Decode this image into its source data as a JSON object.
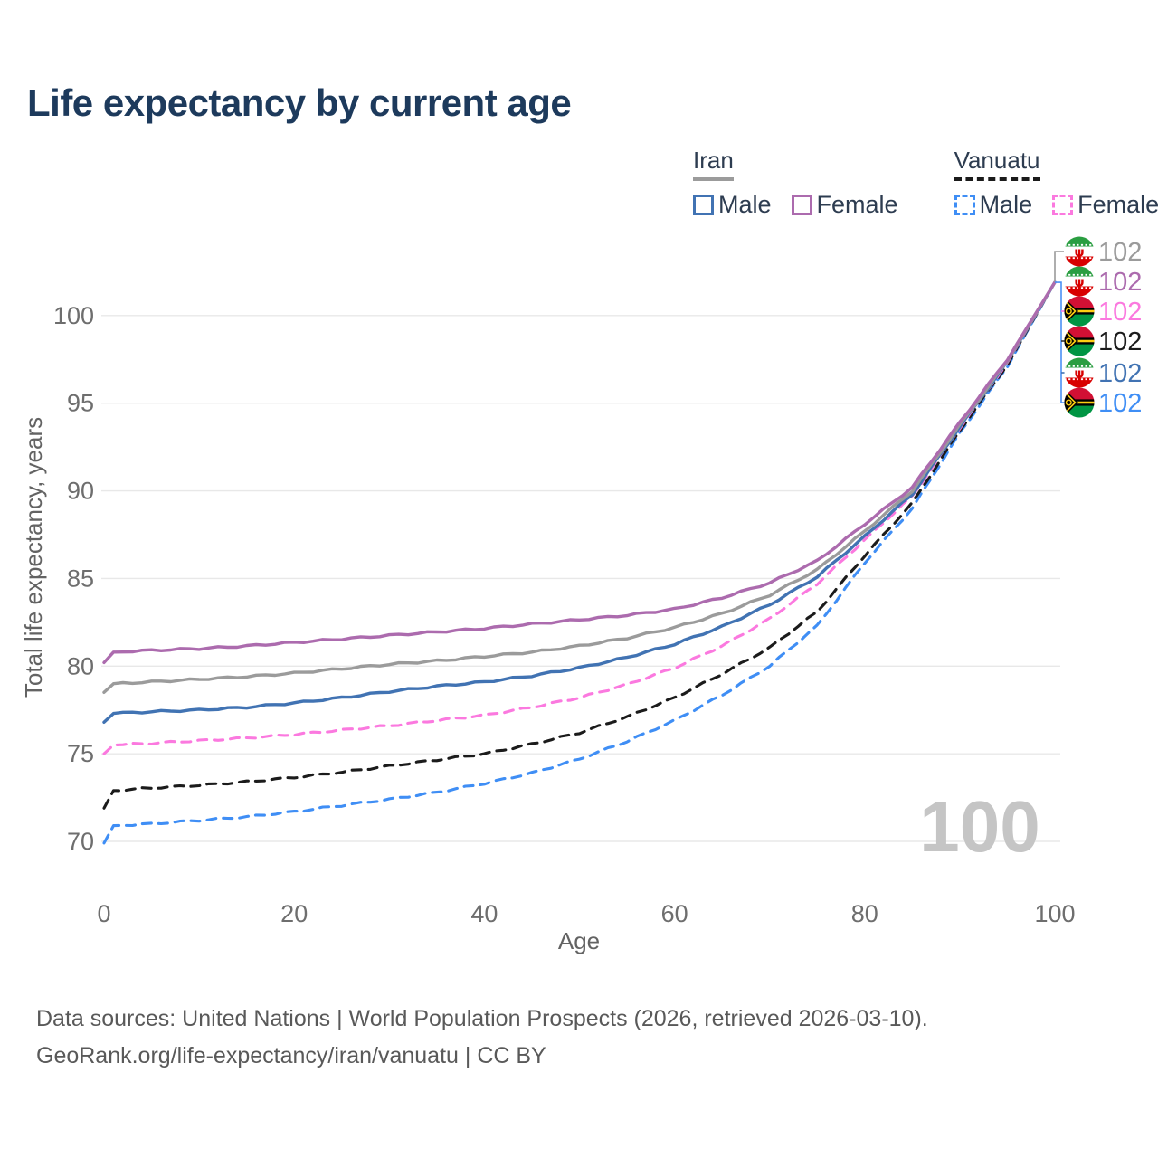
{
  "title": "Life expectancy by current age",
  "legend": {
    "groups": [
      {
        "name": "Iran",
        "line_style": "solid",
        "line_color": "#9b9b9b",
        "items": [
          {
            "label": "Male",
            "color": "#4173b3",
            "style": "solid"
          },
          {
            "label": "Female",
            "color": "#ac6bae",
            "style": "solid"
          }
        ]
      },
      {
        "name": "Vanuatu",
        "line_style": "dashed",
        "line_color": "#1b1b1b",
        "items": [
          {
            "label": "Male",
            "color": "#3f8ef5",
            "style": "dashed"
          },
          {
            "label": "Female",
            "color": "#fb79df",
            "style": "dashed"
          }
        ]
      }
    ]
  },
  "watermark": "100",
  "footer": {
    "line1": "Data sources: United Nations | World Population Prospects (2026, retrieved 2026-03-10).",
    "line2": "GeoRank.org/life-expectancy/iran/vanuatu | CC BY"
  },
  "chart_data": {
    "type": "line",
    "title": "Life expectancy by current age",
    "xlabel": "Age",
    "ylabel": "Total life expectancy, years",
    "xlim": [
      0,
      100
    ],
    "ylim": [
      69,
      103
    ],
    "xticks": [
      0,
      20,
      40,
      60,
      80,
      100
    ],
    "yticks": [
      70,
      75,
      80,
      85,
      90,
      95,
      100
    ],
    "grid": true,
    "legend_position": "top-right",
    "x": [
      0,
      1,
      5,
      10,
      15,
      20,
      25,
      30,
      35,
      40,
      45,
      50,
      55,
      60,
      65,
      70,
      75,
      80,
      85,
      90,
      95,
      100
    ],
    "series": [
      {
        "name": "Vanuatu male",
        "country": "Vanuatu",
        "sex": "Male",
        "color": "#3f8ef5",
        "dash": "dashed",
        "values": [
          69.9,
          70.9,
          71.0,
          71.2,
          71.4,
          71.7,
          72.05,
          72.4,
          72.8,
          73.3,
          73.9,
          74.7,
          75.7,
          76.9,
          78.35,
          80.0,
          82.3,
          85.9,
          89.0,
          93.3,
          97.1,
          101.9
        ],
        "end_label": "102"
      },
      {
        "name": "Vanuatu both sexes",
        "country": "Vanuatu",
        "sex": "Both",
        "color": "#1b1b1b",
        "dash": "dashed",
        "values": [
          71.9,
          72.9,
          73.05,
          73.2,
          73.4,
          73.65,
          73.95,
          74.3,
          74.65,
          75.0,
          75.55,
          76.2,
          77.1,
          78.2,
          79.55,
          81.05,
          83.1,
          86.3,
          89.3,
          93.45,
          97.2,
          101.9
        ],
        "end_label": "102"
      },
      {
        "name": "Vanuatu female",
        "country": "Vanuatu",
        "sex": "Female",
        "color": "#fb79df",
        "dash": "dashed",
        "values": [
          75.0,
          75.5,
          75.6,
          75.75,
          75.9,
          76.1,
          76.35,
          76.6,
          76.9,
          77.2,
          77.65,
          78.2,
          78.95,
          79.9,
          81.15,
          82.7,
          84.7,
          87.2,
          89.7,
          93.6,
          97.3,
          101.9
        ],
        "end_label": "102"
      },
      {
        "name": "Iran male",
        "country": "Iran",
        "sex": "Male",
        "color": "#4173b3",
        "dash": "solid",
        "values": [
          76.8,
          77.3,
          77.4,
          77.5,
          77.65,
          77.9,
          78.2,
          78.55,
          78.85,
          79.1,
          79.45,
          79.9,
          80.5,
          81.25,
          82.25,
          83.5,
          85.1,
          87.4,
          89.8,
          93.65,
          97.35,
          101.9
        ],
        "end_label": "102"
      },
      {
        "name": "Iran both sexes",
        "country": "Iran",
        "sex": "Both",
        "color": "#9b9b9b",
        "dash": "solid",
        "values": [
          78.5,
          79.0,
          79.1,
          79.25,
          79.4,
          79.6,
          79.85,
          80.1,
          80.3,
          80.55,
          80.8,
          81.15,
          81.6,
          82.2,
          83.0,
          84.05,
          85.5,
          87.7,
          90.0,
          93.75,
          97.4,
          101.9
        ],
        "end_label": "102"
      },
      {
        "name": "Iran female",
        "country": "Iran",
        "sex": "Female",
        "color": "#ac6bae",
        "dash": "solid",
        "values": [
          80.2,
          80.8,
          80.9,
          81.0,
          81.15,
          81.35,
          81.55,
          81.75,
          81.95,
          82.15,
          82.4,
          82.65,
          82.9,
          83.25,
          83.9,
          84.75,
          86.0,
          88.1,
          90.2,
          93.9,
          97.5,
          101.9
        ],
        "end_label": "102"
      }
    ],
    "end_labels": [
      {
        "flag": "iran",
        "value": "102",
        "color": "#9b9b9b",
        "series": "Iran both sexes"
      },
      {
        "flag": "iran",
        "value": "102",
        "color": "#ac6bae",
        "series": "Iran female"
      },
      {
        "flag": "vanuatu",
        "value": "102",
        "color": "#fb79df",
        "series": "Vanuatu female"
      },
      {
        "flag": "vanuatu",
        "value": "102",
        "color": "#1b1b1b",
        "series": "Vanuatu both sexes"
      },
      {
        "flag": "iran",
        "value": "102",
        "color": "#4173b3",
        "series": "Iran male"
      },
      {
        "flag": "vanuatu",
        "value": "102",
        "color": "#3f8ef5",
        "series": "Vanuatu male"
      }
    ]
  }
}
